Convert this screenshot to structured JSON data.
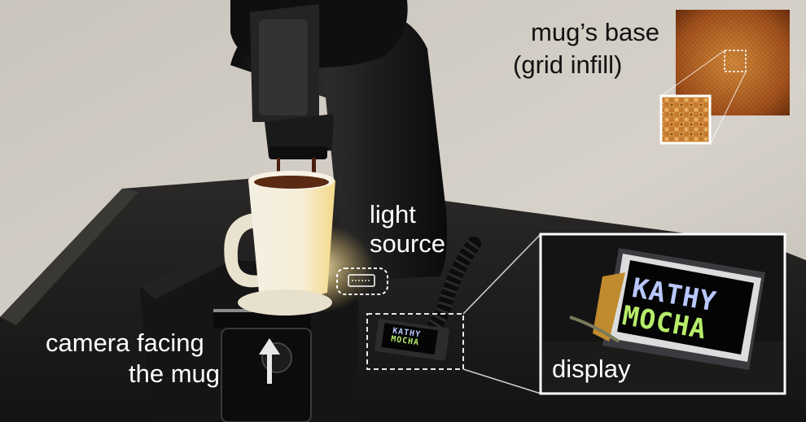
{
  "annotations": {
    "mug_base_title": "mug’s base",
    "mug_base_sub": "(grid infill)",
    "light_source_line1": "light",
    "light_source_line2": "source",
    "camera_line1": "camera facing",
    "camera_line2": "the mug",
    "display_label": "display"
  },
  "screen": {
    "line1": "KATHY",
    "line2": "MOCHA"
  },
  "colors": {
    "wall": "#cfcac2",
    "table": "#1b1a19",
    "machine": "#121212",
    "mug": "#efe8d6",
    "coffee": "#3b1a0e",
    "screen_text_1": "#b9c7ff",
    "screen_text_2": "#b6ec6a",
    "base_texture": "#b5621e"
  },
  "icons": [
    "arrow-up-icon",
    "light-source-icon",
    "zoom-box-icon"
  ]
}
